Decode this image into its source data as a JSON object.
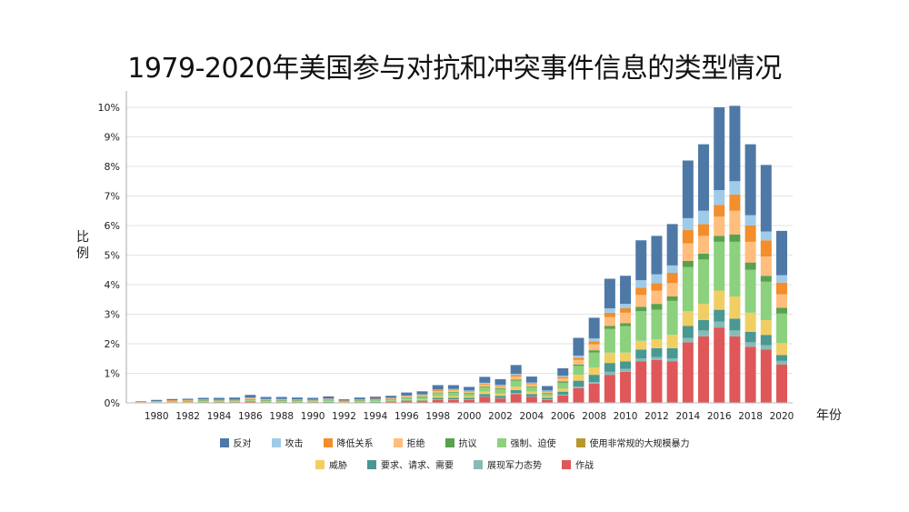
{
  "chart_data": {
    "type": "bar",
    "stacked": true,
    "title": "1979-2020年美国参与对抗和冲突事件信息的类型情况",
    "xlabel": "年份",
    "ylabel": "比例",
    "ylim": [
      0,
      10
    ],
    "y_unit": "%",
    "yticks": [
      "0%",
      "1%",
      "2%",
      "3%",
      "4%",
      "5%",
      "6%",
      "7%",
      "8%",
      "9%",
      "10%"
    ],
    "grid": true,
    "legend_position": "bottom",
    "x": [
      1979,
      1980,
      1981,
      1982,
      1983,
      1984,
      1985,
      1986,
      1987,
      1988,
      1989,
      1990,
      1991,
      1992,
      1993,
      1994,
      1995,
      1996,
      1997,
      1998,
      1999,
      2000,
      2001,
      2002,
      2003,
      2004,
      2005,
      2006,
      2007,
      2008,
      2009,
      2010,
      2011,
      2012,
      2013,
      2014,
      2015,
      2016,
      2017,
      2018,
      2019,
      2020
    ],
    "xtick_labels": [
      "1980",
      "1982",
      "1984",
      "1986",
      "1988",
      "1990",
      "1992",
      "1994",
      "1996",
      "1998",
      "2000",
      "2002",
      "2004",
      "2006",
      "2008",
      "2010",
      "2012",
      "2014",
      "2016",
      "2018",
      "2020"
    ],
    "series": [
      {
        "name": "作战",
        "color": "#e05759",
        "values": [
          0.01,
          0.01,
          0.01,
          0.01,
          0.02,
          0.02,
          0.02,
          0.03,
          0.02,
          0.02,
          0.02,
          0.02,
          0.02,
          0.01,
          0.02,
          0.02,
          0.03,
          0.05,
          0.05,
          0.1,
          0.1,
          0.1,
          0.2,
          0.15,
          0.3,
          0.2,
          0.1,
          0.25,
          0.5,
          0.65,
          0.95,
          1.05,
          1.4,
          1.45,
          1.4,
          2.05,
          2.25,
          2.55,
          2.25,
          1.9,
          1.8,
          1.3
        ]
      },
      {
        "name": "展现军力态势",
        "color": "#86bcb6",
        "values": [
          0,
          0,
          0,
          0,
          0,
          0,
          0,
          0,
          0,
          0,
          0,
          0,
          0,
          0,
          0,
          0,
          0,
          0,
          0,
          0.02,
          0.02,
          0.02,
          0.02,
          0.02,
          0.03,
          0.02,
          0.02,
          0.03,
          0.05,
          0.05,
          0.1,
          0.1,
          0.1,
          0.1,
          0.1,
          0.15,
          0.2,
          0.2,
          0.2,
          0.15,
          0.15,
          0.12
        ]
      },
      {
        "name": "要求、请求、需要",
        "color": "#499894",
        "values": [
          0,
          0,
          0.01,
          0.01,
          0.01,
          0.01,
          0.01,
          0.02,
          0.01,
          0.01,
          0.01,
          0.01,
          0.01,
          0.01,
          0.01,
          0.01,
          0.02,
          0.03,
          0.03,
          0.05,
          0.05,
          0.05,
          0.08,
          0.07,
          0.1,
          0.08,
          0.05,
          0.1,
          0.2,
          0.25,
          0.3,
          0.25,
          0.3,
          0.3,
          0.35,
          0.4,
          0.35,
          0.4,
          0.4,
          0.35,
          0.35,
          0.2
        ]
      },
      {
        "name": "威胁",
        "color": "#f1ce63",
        "values": [
          0,
          0.01,
          0.01,
          0.01,
          0.01,
          0.01,
          0.01,
          0.02,
          0.01,
          0.01,
          0.01,
          0.01,
          0.02,
          0.01,
          0.01,
          0.02,
          0.02,
          0.03,
          0.04,
          0.06,
          0.06,
          0.05,
          0.08,
          0.07,
          0.12,
          0.08,
          0.05,
          0.1,
          0.2,
          0.25,
          0.35,
          0.3,
          0.3,
          0.3,
          0.45,
          0.5,
          0.55,
          0.65,
          0.75,
          0.65,
          0.5,
          0.4
        ]
      },
      {
        "name": "使用非常规的大规模暴力",
        "color": "#b6992d",
        "values": [
          0,
          0,
          0,
          0,
          0,
          0,
          0,
          0,
          0,
          0,
          0,
          0,
          0,
          0,
          0,
          0,
          0,
          0,
          0,
          0,
          0,
          0,
          0,
          0,
          0,
          0,
          0,
          0,
          0,
          0,
          0,
          0,
          0,
          0,
          0,
          0,
          0,
          0,
          0,
          0,
          0,
          0
        ]
      },
      {
        "name": "强制、迫使",
        "color": "#8cd17d",
        "values": [
          0.01,
          0.02,
          0.03,
          0.03,
          0.04,
          0.03,
          0.03,
          0.05,
          0.04,
          0.04,
          0.04,
          0.03,
          0.05,
          0.02,
          0.04,
          0.05,
          0.05,
          0.07,
          0.08,
          0.1,
          0.12,
          0.1,
          0.15,
          0.15,
          0.2,
          0.15,
          0.1,
          0.2,
          0.3,
          0.5,
          0.8,
          0.9,
          1.0,
          1.0,
          1.15,
          1.5,
          1.5,
          1.65,
          1.85,
          1.45,
          1.3,
          1.0
        ]
      },
      {
        "name": "抗议",
        "color": "#59a14f",
        "values": [
          0,
          0,
          0,
          0.01,
          0.01,
          0.01,
          0.01,
          0.01,
          0.01,
          0.01,
          0.01,
          0.01,
          0.01,
          0.01,
          0.01,
          0.01,
          0.01,
          0.01,
          0.02,
          0.02,
          0.02,
          0.02,
          0.03,
          0.03,
          0.04,
          0.03,
          0.02,
          0.05,
          0.05,
          0.08,
          0.1,
          0.1,
          0.15,
          0.2,
          0.15,
          0.2,
          0.2,
          0.2,
          0.25,
          0.25,
          0.2,
          0.2
        ]
      },
      {
        "name": "拒绝",
        "color": "#ffbe7d",
        "values": [
          0.01,
          0.01,
          0.02,
          0.02,
          0.02,
          0.02,
          0.02,
          0.03,
          0.02,
          0.02,
          0.02,
          0.02,
          0.02,
          0.01,
          0.02,
          0.02,
          0.02,
          0.03,
          0.04,
          0.05,
          0.05,
          0.04,
          0.06,
          0.06,
          0.1,
          0.07,
          0.04,
          0.1,
          0.15,
          0.2,
          0.3,
          0.35,
          0.4,
          0.45,
          0.45,
          0.6,
          0.6,
          0.65,
          0.8,
          0.7,
          0.65,
          0.45
        ]
      },
      {
        "name": "降低关系",
        "color": "#f28e2b",
        "values": [
          0,
          0.01,
          0.01,
          0.01,
          0.01,
          0.01,
          0.01,
          0.01,
          0.01,
          0.01,
          0.01,
          0.01,
          0.01,
          0.01,
          0.01,
          0.01,
          0.01,
          0.02,
          0.02,
          0.03,
          0.03,
          0.02,
          0.03,
          0.03,
          0.05,
          0.03,
          0.02,
          0.05,
          0.08,
          0.1,
          0.15,
          0.15,
          0.25,
          0.25,
          0.35,
          0.45,
          0.4,
          0.4,
          0.55,
          0.55,
          0.55,
          0.4
        ]
      },
      {
        "name": "攻击",
        "color": "#a0cbe8",
        "values": [
          0,
          0,
          0,
          0,
          0,
          0,
          0,
          0.01,
          0.01,
          0.01,
          0,
          0,
          0.01,
          0,
          0,
          0,
          0.01,
          0.01,
          0.01,
          0.02,
          0.02,
          0.02,
          0.03,
          0.03,
          0.04,
          0.03,
          0.02,
          0.04,
          0.07,
          0.1,
          0.15,
          0.15,
          0.25,
          0.3,
          0.25,
          0.4,
          0.45,
          0.5,
          0.45,
          0.35,
          0.3,
          0.25
        ]
      },
      {
        "name": "反对",
        "color": "#4e79a7",
        "values": [
          0.02,
          0.04,
          0.04,
          0.04,
          0.05,
          0.06,
          0.07,
          0.09,
          0.07,
          0.07,
          0.06,
          0.06,
          0.07,
          0.04,
          0.06,
          0.07,
          0.07,
          0.1,
          0.1,
          0.15,
          0.13,
          0.12,
          0.2,
          0.19,
          0.3,
          0.2,
          0.15,
          0.25,
          0.6,
          0.7,
          1.0,
          0.95,
          1.35,
          1.3,
          1.4,
          1.95,
          2.25,
          2.8,
          2.55,
          2.4,
          2.25,
          1.5
        ]
      }
    ]
  }
}
